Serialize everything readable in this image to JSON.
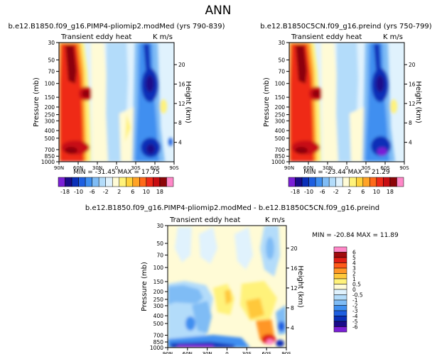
{
  "page_title": "ANN",
  "chart_data": [
    {
      "type": "heatmap",
      "title": "b.e12.B1850.f09_g16.PIMP4-pliomip2.modMed (yrs 790-839)",
      "subtitle_left": "Transient eddy heat",
      "subtitle_right": "K m/s",
      "ylabel": "Pressure (mb)",
      "ylabel_right": "Height (km)",
      "x_ticks": [
        "90N",
        "60N",
        "30N",
        "0",
        "30S",
        "60S",
        "90S"
      ],
      "y_ticks": [
        "30",
        "50",
        "70",
        "100",
        "150",
        "200",
        "250",
        "300",
        "400",
        "500",
        "700",
        "850",
        "1000"
      ],
      "y_ticks_right": [
        "4",
        "8",
        "12",
        "16",
        "20"
      ],
      "stats": "MIN = -31.45   MAX = 17.75",
      "colorbar": {
        "orientation": "horizontal",
        "labels": [
          "-18",
          "-10",
          "-6",
          "-2",
          "2",
          "6",
          "10",
          "18"
        ]
      }
    },
    {
      "type": "heatmap",
      "title": "b.e12.B1850C5CN.f09_g16.preind (yrs 750-799)",
      "subtitle_left": "Transient eddy heat",
      "subtitle_right": "K m/s",
      "ylabel": "Pressure (mb)",
      "ylabel_right": "Height (km)",
      "x_ticks": [
        "90N",
        "60N",
        "30N",
        "0",
        "30S",
        "60S",
        "90S"
      ],
      "y_ticks": [
        "30",
        "50",
        "70",
        "100",
        "150",
        "200",
        "250",
        "300",
        "400",
        "500",
        "700",
        "850",
        "1000"
      ],
      "y_ticks_right": [
        "4",
        "8",
        "12",
        "16",
        "20"
      ],
      "stats": "MIN = -23.44   MAX = 21.29",
      "colorbar": {
        "orientation": "horizontal",
        "labels": [
          "-18",
          "-10",
          "-6",
          "-2",
          "2",
          "6",
          "10",
          "18"
        ]
      }
    },
    {
      "type": "heatmap",
      "title": "b.e12.B1850.f09_g16.PIMP4-pliomip2.modMed - b.e12.B1850C5CN.f09_g16.preind",
      "subtitle_left": "Transient eddy heat",
      "subtitle_right": "K m/s",
      "ylabel": "Pressure (mb)",
      "ylabel_right": "Height (km)",
      "x_ticks": [
        "90N",
        "60N",
        "30N",
        "0",
        "30S",
        "60S",
        "90S"
      ],
      "y_ticks": [
        "30",
        "50",
        "70",
        "100",
        "150",
        "200",
        "250",
        "300",
        "400",
        "500",
        "700",
        "850",
        "1000"
      ],
      "y_ticks_right": [
        "4",
        "8",
        "12",
        "16",
        "20"
      ],
      "stats": "MIN = -20.84   MAX = 11.89",
      "colorbar": {
        "orientation": "vertical",
        "labels": [
          "6",
          "5",
          "4",
          "3",
          "2",
          "1",
          "0.5",
          "0",
          "-0.5",
          "-1",
          "-2",
          "-3",
          "-4",
          "-5",
          "-6"
        ]
      }
    }
  ],
  "colors": {
    "main_scale": [
      "#7a1fd6",
      "#1a0a8a",
      "#0a2fb8",
      "#1e5fe0",
      "#3f8ff0",
      "#7fbcf5",
      "#b3dcfa",
      "#e0f2fd",
      "#fffbd6",
      "#fff27a",
      "#ffd23a",
      "#ffa326",
      "#ff6a1a",
      "#ef2a18",
      "#c80d12",
      "#8c0508",
      "#ff88c8"
    ],
    "diff_scale": [
      "#ff88c8",
      "#a00a0d",
      "#e01e15",
      "#ff5a1a",
      "#ff9626",
      "#ffc83a",
      "#fff27a",
      "#fffbd6",
      "#e0f2fd",
      "#b3dcfa",
      "#7fbcf5",
      "#3f8ff0",
      "#1e5fe0",
      "#0a2fb8",
      "#1a0a8a",
      "#7a1fd6"
    ]
  }
}
